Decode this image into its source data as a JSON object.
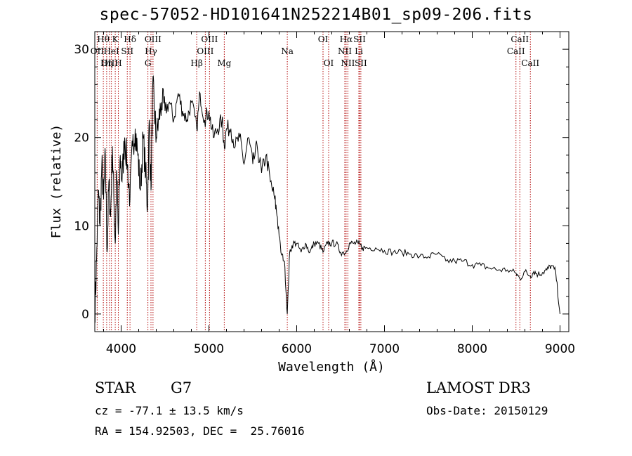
{
  "header": {
    "title": "spec-57052-HD101641N252214B01_sp09-206.fits"
  },
  "info": {
    "class_label": "STAR",
    "subclass_label": "G7",
    "velocity": "cz = -77.1 ± 13.5 km/s",
    "coords": "RA = 154.92503, DEC =  25.76016",
    "survey": "LAMOST DR3",
    "obs_date": "Obs-Date: 20150129"
  },
  "chart_data": {
    "type": "line",
    "title": "spec-57052-HD101641N252214B01_sp09-206.fits",
    "xlabel": "Wavelength (Å)",
    "ylabel": "Flux (relative)",
    "xlim": [
      3700,
      9100
    ],
    "ylim": [
      -2,
      32
    ],
    "xticks": [
      4000,
      5000,
      6000,
      7000,
      8000,
      9000
    ],
    "yticks": [
      0,
      10,
      20,
      30
    ],
    "grid": false,
    "series": [
      {
        "x": [
          3700,
          3720,
          3740,
          3760,
          3780,
          3800,
          3820,
          3840,
          3860,
          3880,
          3900,
          3920,
          3933,
          3950,
          3968,
          3990,
          4010,
          4040,
          4070,
          4101,
          4130,
          4160,
          4190,
          4220,
          4250,
          4280,
          4300,
          4320,
          4340,
          4360,
          4380,
          4400,
          4430,
          4460,
          4500,
          4550,
          4600,
          4650,
          4700,
          4750,
          4800,
          4861,
          4900,
          4950,
          5000,
          5050,
          5100,
          5150,
          5175,
          5200,
          5250,
          5300,
          5350,
          5400,
          5450,
          5500,
          5550,
          5600,
          5650,
          5700,
          5750,
          5780,
          5820,
          5860,
          5893,
          5920,
          5960,
          6000,
          6050,
          6100,
          6150,
          6200,
          6250,
          6300,
          6350,
          6400,
          6450,
          6500,
          6563,
          6600,
          6650,
          6700,
          6750,
          6800,
          6900,
          7000,
          7100,
          7200,
          7300,
          7400,
          7500,
          7600,
          7700,
          7800,
          7900,
          8000,
          8100,
          8200,
          8300,
          8400,
          8500,
          8542,
          8600,
          8662,
          8700,
          8750,
          8800,
          8850,
          8900,
          8950,
          9000
        ],
        "values": [
          0,
          6,
          14,
          10,
          17,
          13,
          18,
          7,
          15,
          11,
          19,
          12,
          8,
          16,
          9,
          18,
          15,
          20,
          17,
          13,
          19,
          21,
          18,
          14,
          20,
          16,
          12,
          22,
          14,
          26,
          23,
          20,
          22,
          24,
          23,
          24,
          22,
          25,
          23,
          22,
          24,
          21,
          25,
          22,
          23,
          20,
          21,
          22,
          19,
          21,
          21,
          19,
          20,
          17,
          20,
          17,
          19,
          16,
          18,
          15,
          13,
          11,
          7,
          6,
          0,
          7,
          8,
          8,
          7,
          8,
          7,
          8,
          8,
          7,
          8,
          8,
          8,
          7,
          7,
          8,
          8,
          8,
          7.5,
          7.5,
          7.5,
          7.2,
          7,
          7,
          6.8,
          6.5,
          6.5,
          6.8,
          6,
          6,
          6,
          5.6,
          5.5,
          5.2,
          5,
          5,
          4.6,
          4,
          4.8,
          4.3,
          4.8,
          4.5,
          4.7,
          5,
          5.5,
          4.8,
          0
        ]
      }
    ],
    "lines": [
      {
        "label": "Hθ",
        "x": 3797,
        "row": 0
      },
      {
        "label": "OII",
        "x": 3727,
        "row": 1
      },
      {
        "label": "OIII",
        "x": 3869,
        "row": 2
      },
      {
        "label": "K",
        "x": 3933,
        "row": 0
      },
      {
        "label": "HeI",
        "x": 3889,
        "row": 1
      },
      {
        "label": "Hη",
        "x": 3835,
        "row": 2
      },
      {
        "label": "Hδ",
        "x": 4101,
        "row": 0
      },
      {
        "label": "SII",
        "x": 4070,
        "row": 1
      },
      {
        "label": "H",
        "x": 3968,
        "row": 2
      },
      {
        "label": "OIII",
        "x": 4363,
        "row": 0
      },
      {
        "label": "Hγ",
        "x": 4340,
        "row": 1
      },
      {
        "label": "G",
        "x": 4305,
        "row": 2
      },
      {
        "label": "OIII",
        "x": 5007,
        "row": 0
      },
      {
        "label": "OIII",
        "x": 4959,
        "row": 1
      },
      {
        "label": "Hβ",
        "x": 4861,
        "row": 2
      },
      {
        "label": "Mg",
        "x": 5175,
        "row": 2
      },
      {
        "label": "Na",
        "x": 5893,
        "row": 1
      },
      {
        "label": "OI",
        "x": 6300,
        "row": 0
      },
      {
        "label": "OI",
        "x": 6364,
        "row": 2
      },
      {
        "label": "Hα",
        "x": 6563,
        "row": 0
      },
      {
        "label": "NII",
        "x": 6548,
        "row": 1
      },
      {
        "label": "NII",
        "x": 6583,
        "row": 2
      },
      {
        "label": "SII",
        "x": 6716,
        "row": 0
      },
      {
        "label": "Li",
        "x": 6708,
        "row": 1
      },
      {
        "label": "SII",
        "x": 6731,
        "row": 2
      },
      {
        "label": "CaII",
        "x": 8542,
        "row": 0
      },
      {
        "label": "CaII",
        "x": 8498,
        "row": 1
      },
      {
        "label": "CaII",
        "x": 8662,
        "row": 2
      }
    ],
    "colors": {
      "spectrum": "#000000",
      "lines": "#b00000",
      "axes": "#000000",
      "background": "#ffffff"
    }
  }
}
